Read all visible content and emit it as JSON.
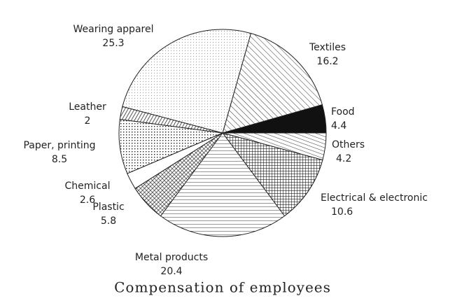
{
  "chart_data": {
    "type": "pie",
    "title": "Compensation of employees",
    "categories": [
      "Textiles",
      "Food",
      "Others",
      "Electrical & electronic",
      "Metal products",
      "Plastic",
      "Chemical",
      "Paper, printing",
      "Leather",
      "Wearing apparel"
    ],
    "values": [
      16.2,
      4.4,
      4.2,
      10.6,
      20.4,
      5.8,
      2.6,
      8.5,
      2,
      25.3
    ]
  }
}
